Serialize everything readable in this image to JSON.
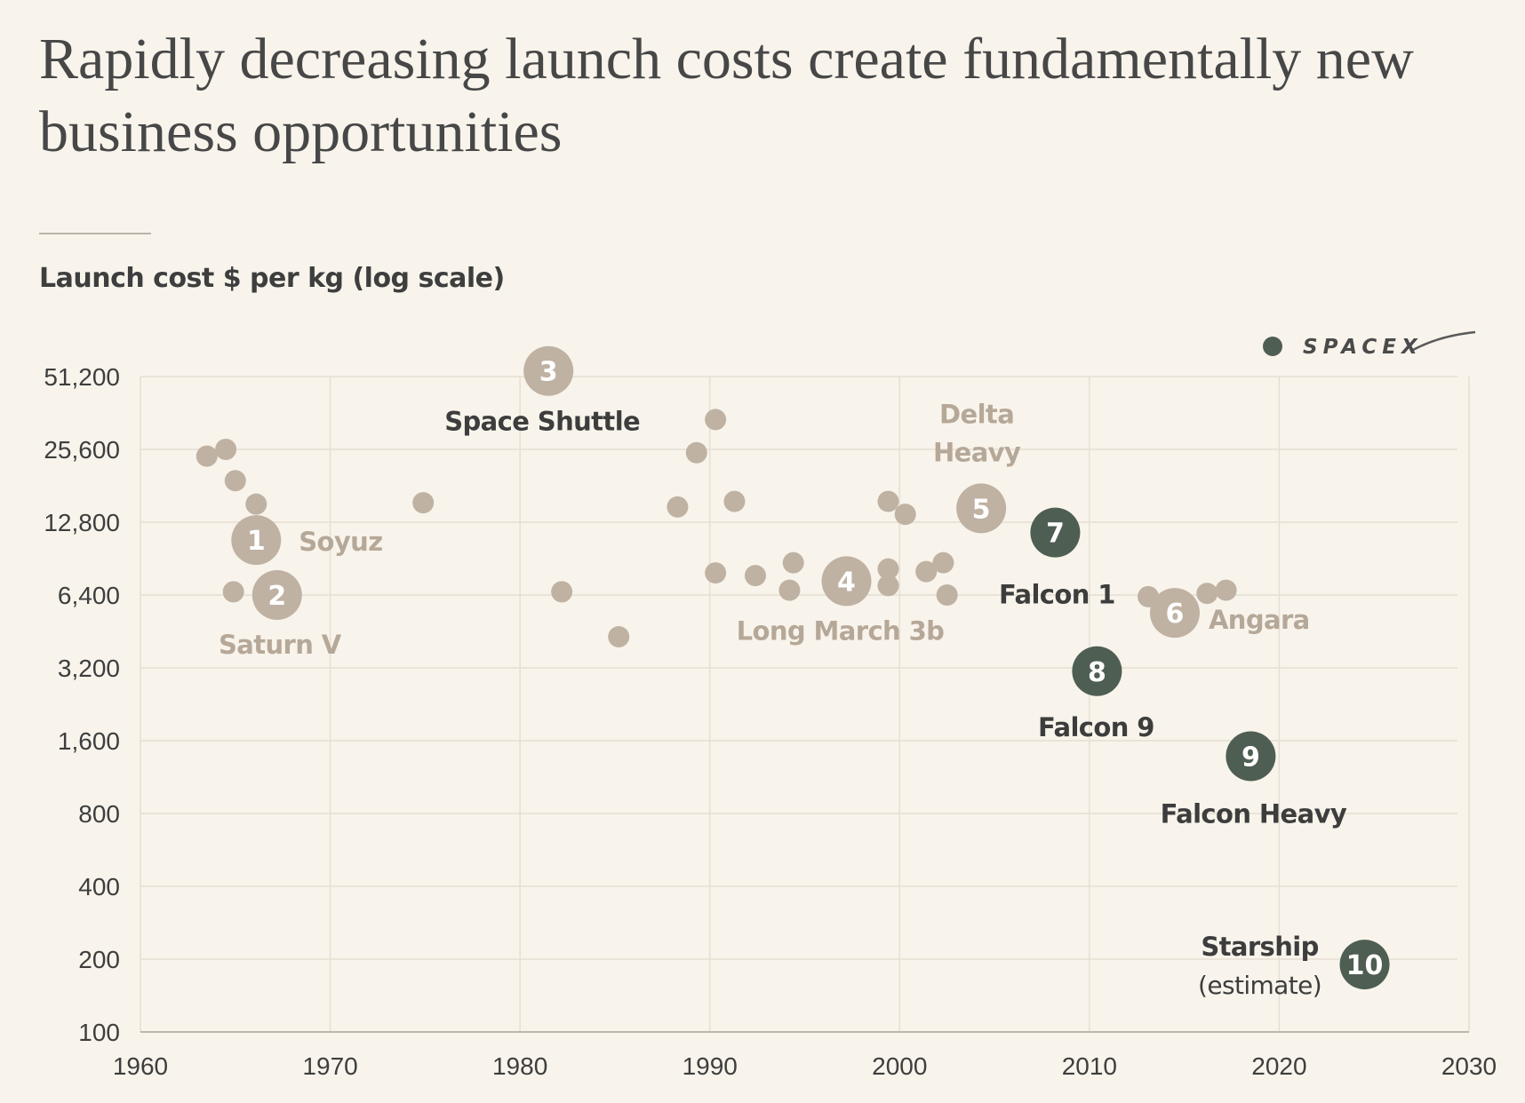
{
  "chart_data": {
    "type": "scatter",
    "title": "Rapidly decreasing launch costs create fundamentally new business opportunities",
    "ylabel": "Launch cost $ per kg (log scale)",
    "yscale": "log2",
    "xlim": [
      1960,
      2030
    ],
    "ylim": [
      100,
      51200
    ],
    "x_ticks": [
      "1960",
      "1970",
      "1980",
      "1990",
      "2000",
      "2010",
      "2020",
      "2030"
    ],
    "y_ticks": [
      "51,200",
      "25,600",
      "12,800",
      "6,400",
      "3,200",
      "1,600",
      "800",
      "400",
      "200",
      "100"
    ],
    "legend": {
      "label": "SPACEX",
      "color": "#4f5e52",
      "placement": "top-right"
    },
    "colors": {
      "other": "#bfb2a3",
      "spacex": "#4f5e52",
      "label_other": "#b6a898",
      "label_dark": "#3d3d3d"
    },
    "points": [
      {
        "x": 1963.5,
        "y": 24000
      },
      {
        "x": 1964.5,
        "y": 25600
      },
      {
        "x": 1965.0,
        "y": 19000
      },
      {
        "x": 1966.1,
        "y": 15200
      },
      {
        "x": 1964.9,
        "y": 6600
      },
      {
        "x": 1974.9,
        "y": 15400
      },
      {
        "x": 1982.2,
        "y": 6600
      },
      {
        "x": 1985.2,
        "y": 4300
      },
      {
        "x": 1988.3,
        "y": 14800
      },
      {
        "x": 1989.3,
        "y": 24800
      },
      {
        "x": 1990.3,
        "y": 34000
      },
      {
        "x": 1990.3,
        "y": 7900
      },
      {
        "x": 1991.3,
        "y": 15600
      },
      {
        "x": 1992.4,
        "y": 7700
      },
      {
        "x": 1994.4,
        "y": 8700
      },
      {
        "x": 1994.2,
        "y": 6700
      },
      {
        "x": 1999.4,
        "y": 15600
      },
      {
        "x": 2000.3,
        "y": 13800
      },
      {
        "x": 1999.4,
        "y": 8200
      },
      {
        "x": 1999.4,
        "y": 7000
      },
      {
        "x": 2001.4,
        "y": 8000
      },
      {
        "x": 2002.3,
        "y": 8700
      },
      {
        "x": 2002.5,
        "y": 6400
      },
      {
        "x": 2013.1,
        "y": 6300
      },
      {
        "x": 2016.2,
        "y": 6500
      },
      {
        "x": 2017.2,
        "y": 6700
      }
    ],
    "vehicles": [
      {
        "num": "1",
        "x": 1966.1,
        "y": 10800,
        "group": "other",
        "name_lines": [
          "Soyuz"
        ]
      },
      {
        "num": "2",
        "x": 1967.2,
        "y": 6400,
        "group": "other",
        "name_lines": [
          "Saturn V"
        ]
      },
      {
        "num": "3",
        "x": 1981.5,
        "y": 54000,
        "group": "other",
        "name_lines": [
          "Space Shuttle"
        ],
        "dark_label": true
      },
      {
        "num": "4",
        "x": 1997.2,
        "y": 7300,
        "group": "other",
        "name_lines": [
          "Long March 3b"
        ]
      },
      {
        "num": "5",
        "x": 2004.3,
        "y": 14600,
        "group": "other",
        "name_lines": [
          "Delta",
          "Heavy"
        ]
      },
      {
        "num": "6",
        "x": 2014.5,
        "y": 5400,
        "group": "other",
        "name_lines": [
          "Angara"
        ]
      },
      {
        "num": "7",
        "x": 2008.2,
        "y": 11600,
        "group": "spacex",
        "name_lines": [
          "Falcon 1"
        ]
      },
      {
        "num": "8",
        "x": 2010.4,
        "y": 3100,
        "group": "spacex",
        "name_lines": [
          "Falcon 9"
        ]
      },
      {
        "num": "9",
        "x": 2018.5,
        "y": 1380,
        "group": "spacex",
        "name_lines": [
          "Falcon Heavy"
        ]
      },
      {
        "num": "10",
        "x": 2024.5,
        "y": 190,
        "group": "spacex",
        "name_lines": [
          "Starship"
        ],
        "note": "(estimate)"
      }
    ]
  }
}
